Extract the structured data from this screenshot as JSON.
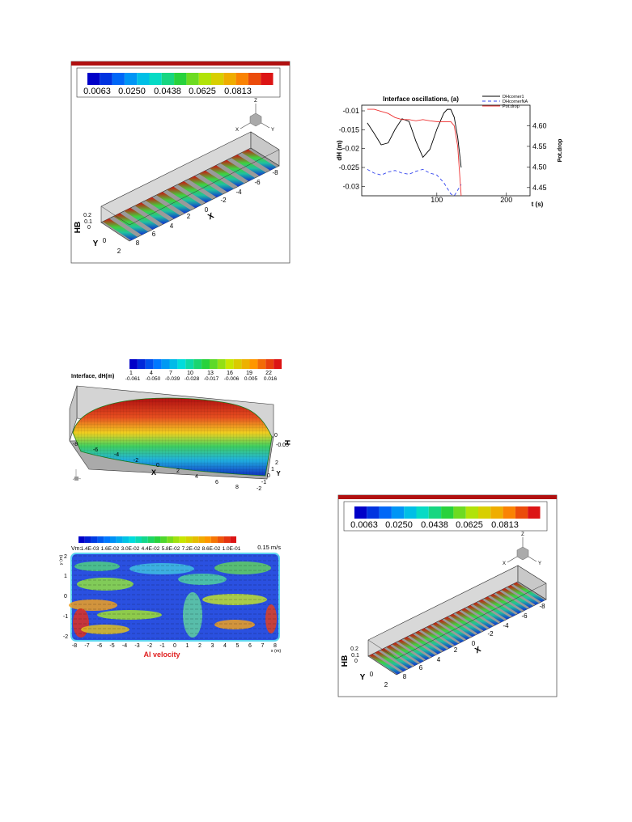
{
  "figures": [
    {
      "colorbar_labels": [
        "0.0063",
        "0.0250",
        "0.0438",
        "0.0625",
        "0.0813"
      ],
      "triad": [
        "Z",
        "X",
        "Y"
      ],
      "x_ticks": [
        "8",
        "6",
        "4",
        "2",
        "0",
        "-2",
        "-4",
        "-6",
        "-8"
      ],
      "x_label": "X",
      "y_ticks": [
        "2",
        "0"
      ],
      "y_label": "Y",
      "hb_ticks": [
        "0.2",
        "0.1",
        "0"
      ],
      "hb_label": "HB"
    },
    {
      "colorbar_labels": [
        "0.0063",
        "0.0250",
        "0.0438",
        "0.0625",
        "0.0813"
      ],
      "triad": [
        "Z",
        "X",
        "Y"
      ],
      "x_ticks": [
        "8",
        "6",
        "4",
        "2",
        "0",
        "-2",
        "-4",
        "-6",
        "-8"
      ],
      "x_label": "X",
      "y_ticks": [
        "2",
        "0"
      ],
      "y_label": "Y",
      "hb_ticks": [
        "0.2",
        "0.1",
        "0"
      ],
      "hb_label": "HB"
    }
  ],
  "interface": {
    "title": "Interface, dH(m)",
    "colorbar_levels": [
      "1",
      "4",
      "7",
      "10",
      "13",
      "16",
      "19",
      "22"
    ],
    "colorbar_values": [
      "-0.061",
      "-0.050",
      "-0.039",
      "-0.028",
      "-0.017",
      "-0.006",
      "0.005",
      "0.016"
    ],
    "x_ticks": [
      "-8",
      "-6",
      "-4",
      "-2",
      "0",
      "2",
      "4",
      "6",
      "8"
    ],
    "x_label": "X",
    "y_ticks": [
      "2",
      "1",
      "0",
      "-1",
      "-2"
    ],
    "y_label": "Y",
    "h_ticks": [
      "0",
      "-0.05"
    ],
    "h_label": "H"
  },
  "velocity": {
    "colorbar_name": "Vm:",
    "colorbar_labels": [
      "1.4E-03",
      "1.6E-02",
      "3.0E-02",
      "4.4E-02",
      "5.8E-02",
      "7.2E-02",
      "8.6E-02",
      "1.0E-01"
    ],
    "reference_vector": "0.15 m/s",
    "x_ticks": [
      "-8",
      "-7",
      "-6",
      "-5",
      "-4",
      "-3",
      "-2",
      "-1",
      "0",
      "1",
      "2",
      "3",
      "4",
      "5",
      "6",
      "7",
      "8"
    ],
    "x_label": "x (m)",
    "y_ticks": [
      "2",
      "1",
      "0",
      "-1",
      "-2"
    ],
    "y_label": "y (m)",
    "caption": "Al velocity"
  },
  "chart_data": {
    "type": "line",
    "title": "Interface oscillations,  (a)",
    "x_label": "t (s)",
    "y_label": "dH (m)",
    "y2_label": "Pot.drop",
    "x": [
      0,
      10,
      20,
      30,
      40,
      50,
      60,
      70,
      80,
      90,
      100,
      110,
      115,
      120,
      125,
      130,
      135
    ],
    "series": [
      {
        "name": "DHcorner1",
        "color": "#000000",
        "linestyle": "solid",
        "values": [
          -0.0132,
          -0.016,
          -0.019,
          -0.0185,
          -0.0149,
          -0.0121,
          -0.0128,
          -0.0181,
          -0.0223,
          -0.0202,
          -0.0149,
          -0.0106,
          -0.0096,
          -0.0096,
          -0.0117,
          -0.017,
          -0.025
        ]
      },
      {
        "name": "DHcornerNA",
        "color": "#3344ee",
        "linestyle": "dashed",
        "values": [
          -0.0255,
          -0.0265,
          -0.027,
          -0.0262,
          -0.0258,
          -0.0265,
          -0.0268,
          -0.026,
          -0.0255,
          -0.0265,
          -0.027,
          -0.029,
          -0.0305,
          -0.032,
          -0.0325,
          -0.031,
          -0.0295
        ]
      },
      {
        "name": "Pot.drop",
        "color": "#ee3333",
        "linestyle": "solid",
        "axis": "y2",
        "values": [
          4.64,
          4.64,
          4.635,
          4.63,
          4.62,
          4.615,
          4.615,
          4.612,
          4.615,
          4.612,
          4.61,
          4.61,
          4.61,
          4.61,
          4.6,
          4.55,
          4.43
        ]
      }
    ],
    "xlim": [
      -8,
      234
    ],
    "xticks": [
      100,
      200
    ],
    "ylim": [
      -0.0325,
      -0.0085
    ],
    "yticks": [
      -0.03,
      -0.025,
      -0.02,
      -0.015,
      -0.01
    ],
    "y2lim": [
      4.43,
      4.65
    ],
    "y2ticks": [
      4.45,
      {
        "value": 4.5,
        "label": "4.50"
      },
      4.55,
      {
        "value": 4.6,
        "label": "4.60"
      }
    ],
    "legend": "top-right",
    "grid": false
  }
}
